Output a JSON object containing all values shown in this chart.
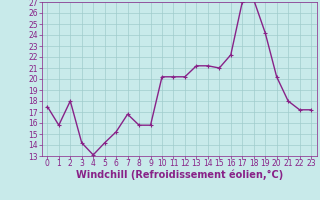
{
  "x": [
    0,
    1,
    2,
    3,
    4,
    5,
    6,
    7,
    8,
    9,
    10,
    11,
    12,
    13,
    14,
    15,
    16,
    17,
    18,
    19,
    20,
    21,
    22,
    23
  ],
  "y": [
    17.5,
    15.8,
    18.0,
    14.2,
    13.1,
    14.2,
    15.2,
    16.8,
    15.8,
    15.8,
    20.2,
    20.2,
    20.2,
    21.2,
    21.2,
    21.0,
    22.2,
    27.0,
    27.2,
    24.2,
    20.2,
    18.0,
    17.2,
    17.2
  ],
  "line_color": "#882288",
  "marker": "+",
  "marker_size": 3,
  "bg_color": "#c8eaea",
  "grid_color": "#a0cccc",
  "xlabel": "Windchill (Refroidissement éolien,°C)",
  "xlabel_color": "#882288",
  "tick_color": "#882288",
  "ylim": [
    13,
    27
  ],
  "xlim": [
    -0.5,
    23.5
  ],
  "yticks": [
    13,
    14,
    15,
    16,
    17,
    18,
    19,
    20,
    21,
    22,
    23,
    24,
    25,
    26,
    27
  ],
  "xticks": [
    0,
    1,
    2,
    3,
    4,
    5,
    6,
    7,
    8,
    9,
    10,
    11,
    12,
    13,
    14,
    15,
    16,
    17,
    18,
    19,
    20,
    21,
    22,
    23
  ],
  "tick_fontsize": 5.5,
  "xlabel_fontsize": 7.0,
  "line_width": 1.0
}
